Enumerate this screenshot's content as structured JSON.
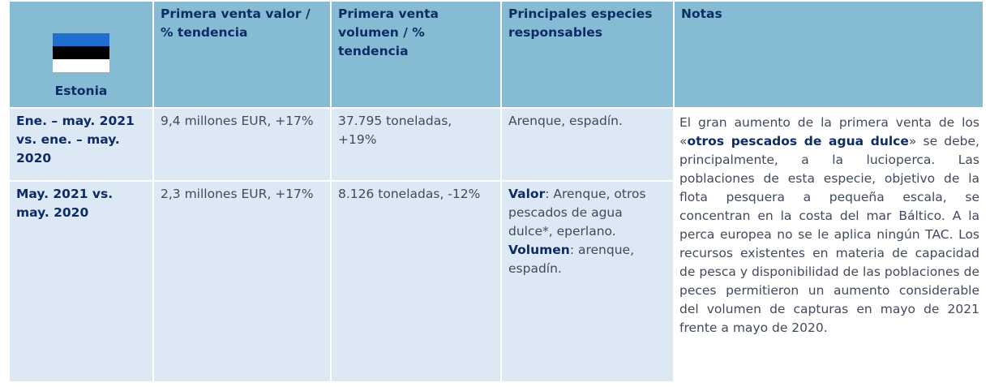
{
  "table": {
    "header": [
      "Estonia",
      "Primera venta valor / % tendencia",
      "Primera venta volumen / % tendencia",
      "Principales especies responsables",
      "Notas"
    ],
    "rows": [
      [
        "Ene. – may. 2021 vs. ene. – may. 2020",
        "9,4 millones EUR, +17%",
        "37.795 toneladas, +19%",
        "Arenque, espadín."
      ],
      [
        "May. 2021 vs. may. 2020",
        "2,3 millones EUR, +17%",
        "8.126 toneladas, -12%",
        {
          "value_label": "Valor",
          "value_text": ": Arenque, otros pescados de agua dulce*, eperlano.",
          "volume_label": "Volumen",
          "volume_text": ": arenque, espadín."
        }
      ]
    ],
    "notes": [
      "El gran aumento de la primera venta de los «",
      "otros pescados de agua dulce",
      "» se debe, principalmente, a la lucioperca. Las poblaciones de esta especie, objetivo de la flota pesquera a pequeña escala, se concentran en la costa del mar Báltico. A la perca europea no se le aplica ningún TAC. Los recursos existentes en materia de capacidad de pesca y disponibilidad de las poblaciones de peces permitieron un aumento considerable del volumen de capturas en mayo de 2021 frente a mayo de 2020."
    ]
  }
}
